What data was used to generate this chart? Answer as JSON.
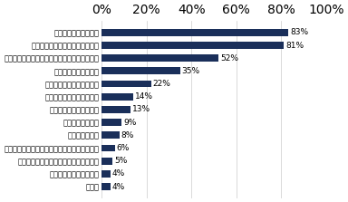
{
  "categories": [
    "その他",
    "外部委託、協力先の活用",
    "人員配置による一人当たりの業務量削減",
    "有給取得を、管理職の人事考課項目として設定",
    "代替要員の確保",
    "特に考えていない",
    "社員向けの説明会・研修",
    "管理職向けの説明会・研修",
    "有給休暇取得率の目標設定",
    "トップからのよびかけ",
    "取得の低い社員に対し、個別に休暇取得を促す",
    "有給休暇取得のための周知・啓発",
    "有給休暇の計画的取得"
  ],
  "values": [
    4,
    4,
    5,
    6,
    8,
    9,
    13,
    14,
    22,
    35,
    52,
    81,
    83
  ],
  "bar_color": "#1a2f5a",
  "background_color": "#ffffff",
  "xlim": [
    0,
    100
  ],
  "xticks": [
    0,
    20,
    40,
    60,
    80,
    100
  ],
  "xticklabels": [
    "0%",
    "20%",
    "40%",
    "60%",
    "80%",
    "100%"
  ],
  "value_label_fontsize": 6.5,
  "category_fontsize": 6.0,
  "tick_fontsize": 7.0,
  "bar_height": 0.55
}
